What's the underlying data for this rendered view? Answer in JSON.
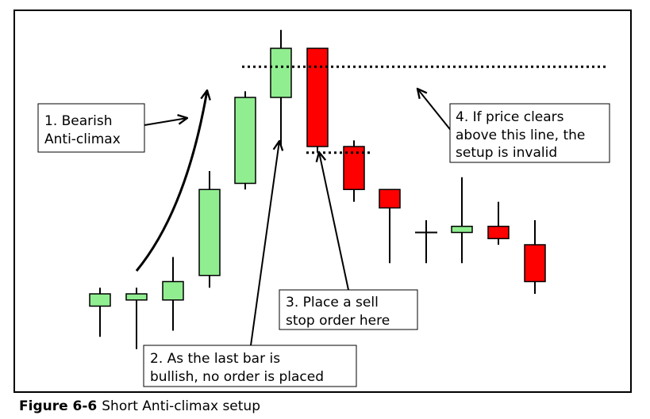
{
  "caption": {
    "label": "Figure 6-6",
    "text": "Short Anti-climax setup"
  },
  "annotations": {
    "a1": [
      "1. Bearish",
      "Anti-climax"
    ],
    "a2": [
      "2. As the last bar is",
      "bullish, no order is placed"
    ],
    "a3": [
      "3. Place a sell",
      "stop order here"
    ],
    "a4": [
      "4. If price clears",
      "above this line, the",
      "setup is invalid"
    ]
  },
  "colors": {
    "bull": "#90ee90",
    "bear": "#ff0000",
    "stroke": "#000000"
  },
  "chart_data": {
    "type": "candlestick",
    "candles": [
      {
        "open": 3.0,
        "high": 4.5,
        "low": 0.5,
        "close": 4.0,
        "dir": "bull"
      },
      {
        "open": 3.5,
        "high": 4.5,
        "low": -0.5,
        "close": 4.0,
        "dir": "bull"
      },
      {
        "open": 3.5,
        "high": 7.0,
        "low": 1.0,
        "close": 5.0,
        "dir": "bull"
      },
      {
        "open": 5.5,
        "high": 14.0,
        "low": 4.5,
        "close": 12.5,
        "dir": "bull"
      },
      {
        "open": 13.0,
        "high": 20.5,
        "low": 12.5,
        "close": 20.0,
        "dir": "bull"
      },
      {
        "open": 20.0,
        "high": 25.5,
        "low": 16.0,
        "close": 24.0,
        "dir": "bull"
      },
      {
        "open": 24.0,
        "high": 24.0,
        "low": 15.5,
        "close": 16.0,
        "dir": "bear"
      },
      {
        "open": 16.0,
        "high": 16.5,
        "low": 11.5,
        "close": 12.5,
        "dir": "bear"
      },
      {
        "open": 12.5,
        "high": 12.5,
        "low": 6.5,
        "close": 11.0,
        "dir": "bear"
      },
      {
        "open": 9.0,
        "high": 10.0,
        "low": 6.5,
        "close": 9.0,
        "dir": "neutral"
      },
      {
        "open": 9.0,
        "high": 13.5,
        "low": 6.5,
        "close": 9.5,
        "dir": "bull"
      },
      {
        "open": 9.5,
        "high": 11.5,
        "low": 8.0,
        "close": 8.5,
        "dir": "bear"
      },
      {
        "open": 8.0,
        "high": 10.0,
        "low": 4.0,
        "close": 5.0,
        "dir": "bear"
      }
    ],
    "invalidation_line": 22.5,
    "sell_stop_line": 15.5
  }
}
